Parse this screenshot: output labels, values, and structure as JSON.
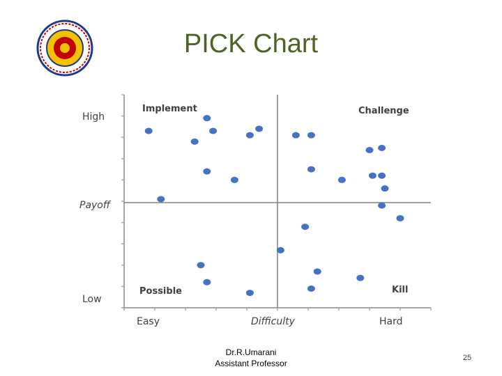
{
  "slide": {
    "title": "PICK Chart",
    "author_name": "Dr.R.Umarani",
    "author_role": "Assistant Professor",
    "slide_number": "25"
  },
  "logo": {
    "description_icon": "college-seal-icon"
  },
  "colors": {
    "title": "#4f6228",
    "points": "#4472c4",
    "axes": "#a6a6a6",
    "quadrant_lines": "#808080"
  },
  "chart_data": {
    "type": "scatter",
    "quadrant_labels": {
      "top_left": "Implement",
      "top_right": "Challenge",
      "bottom_left": "Possible",
      "bottom_right": "Kill"
    },
    "y_axis_labels": {
      "high": "High",
      "middle": "Payoff",
      "low": "Low"
    },
    "x_axis_labels": {
      "left": "Easy",
      "middle": "Difficulty",
      "right": "Hard"
    },
    "xlim": [
      0,
      100
    ],
    "ylim": [
      0,
      100
    ],
    "grid": false,
    "points": [
      {
        "x": 8,
        "y": 83
      },
      {
        "x": 27,
        "y": 89
      },
      {
        "x": 29,
        "y": 83
      },
      {
        "x": 23,
        "y": 78
      },
      {
        "x": 41,
        "y": 81
      },
      {
        "x": 44,
        "y": 84
      },
      {
        "x": 56,
        "y": 81
      },
      {
        "x": 61,
        "y": 81
      },
      {
        "x": 27,
        "y": 64
      },
      {
        "x": 36,
        "y": 60
      },
      {
        "x": 12,
        "y": 51
      },
      {
        "x": 61,
        "y": 65
      },
      {
        "x": 71,
        "y": 60
      },
      {
        "x": 80,
        "y": 74
      },
      {
        "x": 84,
        "y": 75
      },
      {
        "x": 81,
        "y": 62
      },
      {
        "x": 84,
        "y": 62
      },
      {
        "x": 85,
        "y": 56
      },
      {
        "x": 84,
        "y": 48
      },
      {
        "x": 90,
        "y": 42
      },
      {
        "x": 59,
        "y": 38
      },
      {
        "x": 51,
        "y": 27
      },
      {
        "x": 25,
        "y": 20
      },
      {
        "x": 27,
        "y": 12
      },
      {
        "x": 41,
        "y": 7
      },
      {
        "x": 63,
        "y": 17
      },
      {
        "x": 61,
        "y": 9
      },
      {
        "x": 77,
        "y": 14
      }
    ]
  }
}
